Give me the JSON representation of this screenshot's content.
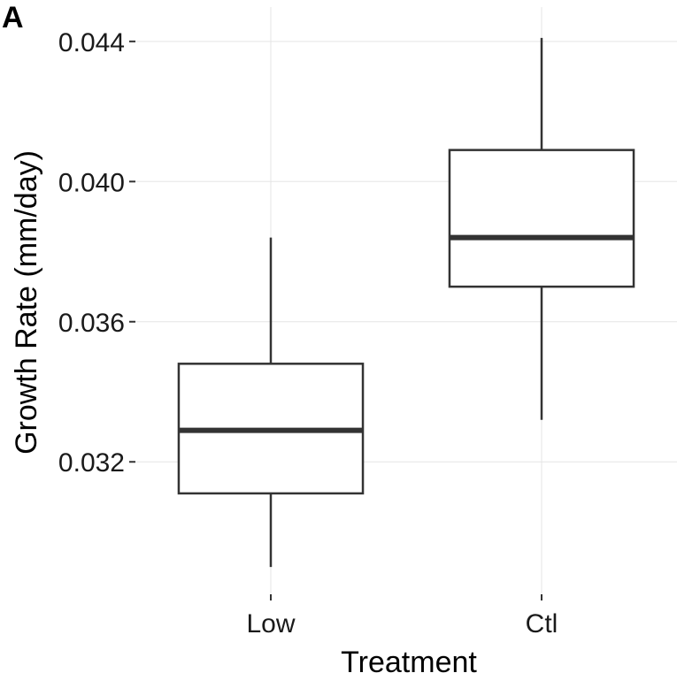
{
  "panel_label": "A",
  "chart_data": {
    "type": "box",
    "xlabel": "Treatment",
    "ylabel": "Growth Rate (mm/day)",
    "categories": [
      "Low",
      "Ctl"
    ],
    "boxes": [
      {
        "category": "Low",
        "whisker_low": 0.029,
        "q1": 0.0311,
        "median": 0.0329,
        "q3": 0.0348,
        "whisker_high": 0.0384
      },
      {
        "category": "Ctl",
        "whisker_low": 0.0332,
        "q1": 0.037,
        "median": 0.0384,
        "q3": 0.0409,
        "whisker_high": 0.0441
      }
    ],
    "yticks": [
      "0.032",
      "0.036",
      "0.040",
      "0.044"
    ],
    "ylim": [
      0.02822,
      0.04498
    ],
    "grid": true
  }
}
